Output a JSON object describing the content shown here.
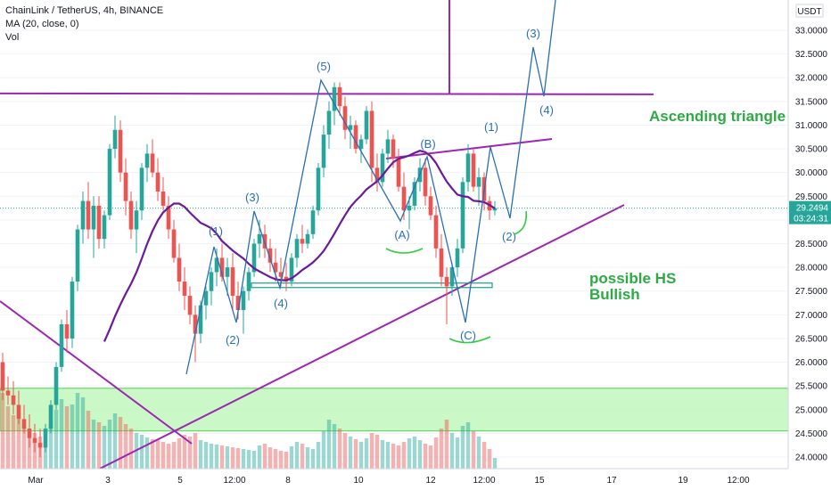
{
  "legend": {
    "title": "ChainLink / TetherUS, 4h, BINANCE",
    "ma": "MA (20, close, 0)",
    "vol": "Vol"
  },
  "price_axis": {
    "currency": "USDT",
    "ticks": [
      "33.0000",
      "32.5000",
      "32.0000",
      "31.5000",
      "31.0000",
      "30.5000",
      "30.0000",
      "29.5000",
      "29.0000",
      "28.5000",
      "28.0000",
      "27.5000",
      "27.0000",
      "26.5000",
      "26.0000",
      "25.5000",
      "25.0000",
      "24.5000",
      "24.0000"
    ],
    "last_price": "29.2494",
    "countdown": "03:24:31"
  },
  "time_axis": {
    "ticks": [
      "Mar",
      "3",
      "5",
      "12:00",
      "8",
      "10",
      "12",
      "12:00",
      "15",
      "17",
      "19",
      "12:00"
    ]
  },
  "colors": {
    "up": "#26a69a",
    "down": "#ef5350",
    "ma": "#6a1b9a",
    "trendline": "#9c27b0",
    "wave": "#2a6fb5",
    "zone": "#b9f6b4",
    "annotation": "#2eaa44"
  },
  "chart_data": {
    "type": "candlestick",
    "symbol": "ChainLink / TetherUS",
    "interval": "4h",
    "exchange": "BINANCE",
    "y_range": [
      23.8,
      33.3
    ],
    "ohlc": [
      [
        26.0,
        26.2,
        25.2,
        25.4
      ],
      [
        25.4,
        25.7,
        25.1,
        25.3
      ],
      [
        25.3,
        25.6,
        24.9,
        25.1
      ],
      [
        25.1,
        25.4,
        24.7,
        24.8
      ],
      [
        24.8,
        25.1,
        24.5,
        24.6
      ],
      [
        24.6,
        24.9,
        24.2,
        24.4
      ],
      [
        24.4,
        24.7,
        24.1,
        24.3
      ],
      [
        24.3,
        24.6,
        24.0,
        24.2
      ],
      [
        24.2,
        24.7,
        24.1,
        24.6
      ],
      [
        24.6,
        25.2,
        24.5,
        25.1
      ],
      [
        25.1,
        26.0,
        25.0,
        25.9
      ],
      [
        25.9,
        26.9,
        25.8,
        26.8
      ],
      [
        26.8,
        27.1,
        26.2,
        26.5
      ],
      [
        26.5,
        27.8,
        26.3,
        27.7
      ],
      [
        27.7,
        28.9,
        27.5,
        28.8
      ],
      [
        28.8,
        29.6,
        28.5,
        29.4
      ],
      [
        29.4,
        29.8,
        28.6,
        28.8
      ],
      [
        28.8,
        29.5,
        28.2,
        29.3
      ],
      [
        29.3,
        29.5,
        28.4,
        28.6
      ],
      [
        28.6,
        29.2,
        28.4,
        29.1
      ],
      [
        29.1,
        30.6,
        29.0,
        30.5
      ],
      [
        30.5,
        31.2,
        30.3,
        30.9
      ],
      [
        30.9,
        31.1,
        29.8,
        30.0
      ],
      [
        30.0,
        30.3,
        29.1,
        29.4
      ],
      [
        29.4,
        29.6,
        28.6,
        28.8
      ],
      [
        28.8,
        29.4,
        28.3,
        29.2
      ],
      [
        29.2,
        30.2,
        29.0,
        30.1
      ],
      [
        30.1,
        30.6,
        29.8,
        30.4
      ],
      [
        30.4,
        30.7,
        29.9,
        30.0
      ],
      [
        30.0,
        30.3,
        29.4,
        29.6
      ],
      [
        29.6,
        29.9,
        29.2,
        29.3
      ],
      [
        29.3,
        29.5,
        28.6,
        28.8
      ],
      [
        28.8,
        29.0,
        28.1,
        28.2
      ],
      [
        28.2,
        28.5,
        27.5,
        27.7
      ],
      [
        27.7,
        28.0,
        27.1,
        27.4
      ],
      [
        27.4,
        27.6,
        26.8,
        27.0
      ],
      [
        27.0,
        27.2,
        26.0,
        26.6
      ],
      [
        26.6,
        27.3,
        26.4,
        27.2
      ],
      [
        27.2,
        27.6,
        26.9,
        27.5
      ],
      [
        27.5,
        28.0,
        27.2,
        27.9
      ],
      [
        27.9,
        28.4,
        27.6,
        28.2
      ],
      [
        28.2,
        28.5,
        27.7,
        27.8
      ],
      [
        27.8,
        28.2,
        27.4,
        28.0
      ],
      [
        28.0,
        28.3,
        27.1,
        27.4
      ],
      [
        27.4,
        27.7,
        26.9,
        27.1
      ],
      [
        27.1,
        27.6,
        26.6,
        27.5
      ],
      [
        27.5,
        28.0,
        27.3,
        27.9
      ],
      [
        27.9,
        28.6,
        27.8,
        28.5
      ],
      [
        28.5,
        29.0,
        28.2,
        28.7
      ],
      [
        28.7,
        28.9,
        28.2,
        28.4
      ],
      [
        28.4,
        28.6,
        27.9,
        28.1
      ],
      [
        28.1,
        28.4,
        27.7,
        27.9
      ],
      [
        27.9,
        28.2,
        27.6,
        27.8
      ],
      [
        27.8,
        28.1,
        27.5,
        27.7
      ],
      [
        27.7,
        28.3,
        27.6,
        28.2
      ],
      [
        28.2,
        28.7,
        28.0,
        28.6
      ],
      [
        28.6,
        28.9,
        28.3,
        28.5
      ],
      [
        28.5,
        28.8,
        28.4,
        28.7
      ],
      [
        28.7,
        29.3,
        28.6,
        29.2
      ],
      [
        29.2,
        30.2,
        29.1,
        30.1
      ],
      [
        30.1,
        31.0,
        29.9,
        30.8
      ],
      [
        30.8,
        31.5,
        30.5,
        31.3
      ],
      [
        31.3,
        31.9,
        31.0,
        31.8
      ],
      [
        31.8,
        31.9,
        31.2,
        31.4
      ],
      [
        31.4,
        31.6,
        30.7,
        30.9
      ],
      [
        30.9,
        31.2,
        30.5,
        31.0
      ],
      [
        31.0,
        31.1,
        30.4,
        30.5
      ],
      [
        30.5,
        30.8,
        30.2,
        30.7
      ],
      [
        30.7,
        31.4,
        30.6,
        31.3
      ],
      [
        31.3,
        31.5,
        29.8,
        30.1
      ],
      [
        30.1,
        30.4,
        29.6,
        29.8
      ],
      [
        29.8,
        30.5,
        29.7,
        30.4
      ],
      [
        30.4,
        30.9,
        30.2,
        30.7
      ],
      [
        30.7,
        30.8,
        30.1,
        30.3
      ],
      [
        30.3,
        30.5,
        29.6,
        29.7
      ],
      [
        29.7,
        30.0,
        29.0,
        29.2
      ],
      [
        29.2,
        29.5,
        28.8,
        29.3
      ],
      [
        29.3,
        29.9,
        29.2,
        29.8
      ],
      [
        29.8,
        30.3,
        29.6,
        30.1
      ],
      [
        30.1,
        30.3,
        29.3,
        29.5
      ],
      [
        29.5,
        29.7,
        29.0,
        29.1
      ],
      [
        29.1,
        29.3,
        28.2,
        28.4
      ],
      [
        28.4,
        28.7,
        27.6,
        27.8
      ],
      [
        27.8,
        28.0,
        26.8,
        27.6
      ],
      [
        27.6,
        28.1,
        27.4,
        28.0
      ],
      [
        28.0,
        28.6,
        27.8,
        28.4
      ],
      [
        28.4,
        29.9,
        28.3,
        29.8
      ],
      [
        29.8,
        30.6,
        29.6,
        30.4
      ],
      [
        30.4,
        30.5,
        29.6,
        29.7
      ],
      [
        29.7,
        30.1,
        29.3,
        29.9
      ],
      [
        29.9,
        30.0,
        29.2,
        29.4
      ],
      [
        29.4,
        29.5,
        29.0,
        29.2
      ],
      [
        29.2,
        29.4,
        29.1,
        29.25
      ]
    ],
    "ma_period": 20,
    "volume_scale_max": 100,
    "volume": [
      85,
      70,
      60,
      55,
      48,
      44,
      40,
      36,
      42,
      52,
      66,
      78,
      70,
      72,
      85,
      80,
      65,
      55,
      52,
      48,
      55,
      62,
      58,
      50,
      45,
      40,
      38,
      35,
      33,
      32,
      30,
      28,
      30,
      34,
      38,
      36,
      40,
      32,
      30,
      28,
      27,
      26,
      25,
      24,
      23,
      22,
      21,
      20,
      26,
      28,
      24,
      22,
      20,
      19,
      25,
      30,
      28,
      24,
      22,
      30,
      42,
      55,
      50,
      45,
      40,
      36,
      33,
      30,
      34,
      40,
      38,
      32,
      30,
      28,
      26,
      30,
      34,
      36,
      32,
      28,
      26,
      35,
      45,
      55,
      40,
      35,
      48,
      52,
      42,
      36,
      30,
      22,
      12
    ],
    "levels": {
      "resistance": 31.65,
      "neckline_band": [
        27.58,
        27.65
      ],
      "demand_zone": [
        24.55,
        25.45
      ],
      "price_line": 29.2494
    },
    "wave_labels": [
      "(1)",
      "(2)",
      "(3)",
      "(4)",
      "(5)",
      "(A)",
      "(B)",
      "(C)",
      "(1)",
      "(2)",
      "(3)",
      "(4)"
    ],
    "annotations": [
      "Ascending triangle",
      "possible HS\nBullish"
    ]
  }
}
